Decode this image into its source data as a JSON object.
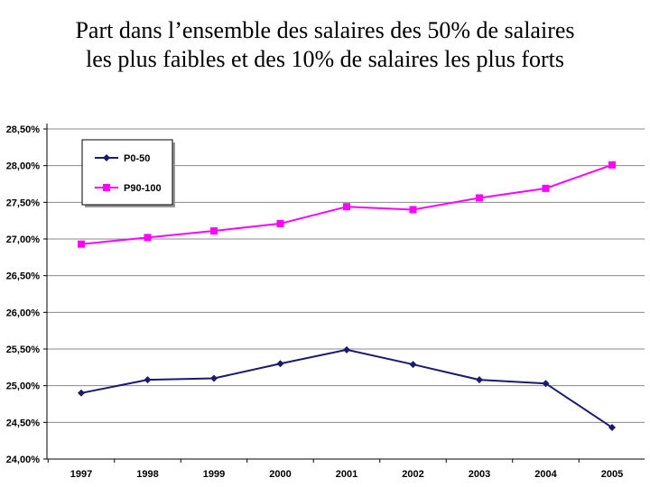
{
  "title": {
    "line1": "Part dans l’ensemble des salaires des 50% de salaires",
    "line2": "les plus faibles et des 10% de salaires les plus forts"
  },
  "chart_data": {
    "type": "line",
    "categories": [
      "1997",
      "1998",
      "1999",
      "2000",
      "2001",
      "2002",
      "2003",
      "2004",
      "2005"
    ],
    "y_ticks": [
      "24,00%",
      "24,50%",
      "25,00%",
      "25,50%",
      "26,00%",
      "26,50%",
      "27,00%",
      "27,50%",
      "28,00%",
      "28,50%"
    ],
    "ylim": [
      24.0,
      28.5
    ],
    "grid": true,
    "legend_position": "top-left",
    "series": [
      {
        "name": "P0-50",
        "color": "#1a1a6e",
        "marker": "diamond",
        "values": [
          24.9,
          25.08,
          25.1,
          25.3,
          25.49,
          25.29,
          25.08,
          25.03,
          24.43
        ]
      },
      {
        "name": "P90-100",
        "color": "#ff00ff",
        "marker": "square",
        "values": [
          26.93,
          27.02,
          27.11,
          27.21,
          27.44,
          27.4,
          27.56,
          27.69,
          28.01
        ]
      }
    ]
  }
}
